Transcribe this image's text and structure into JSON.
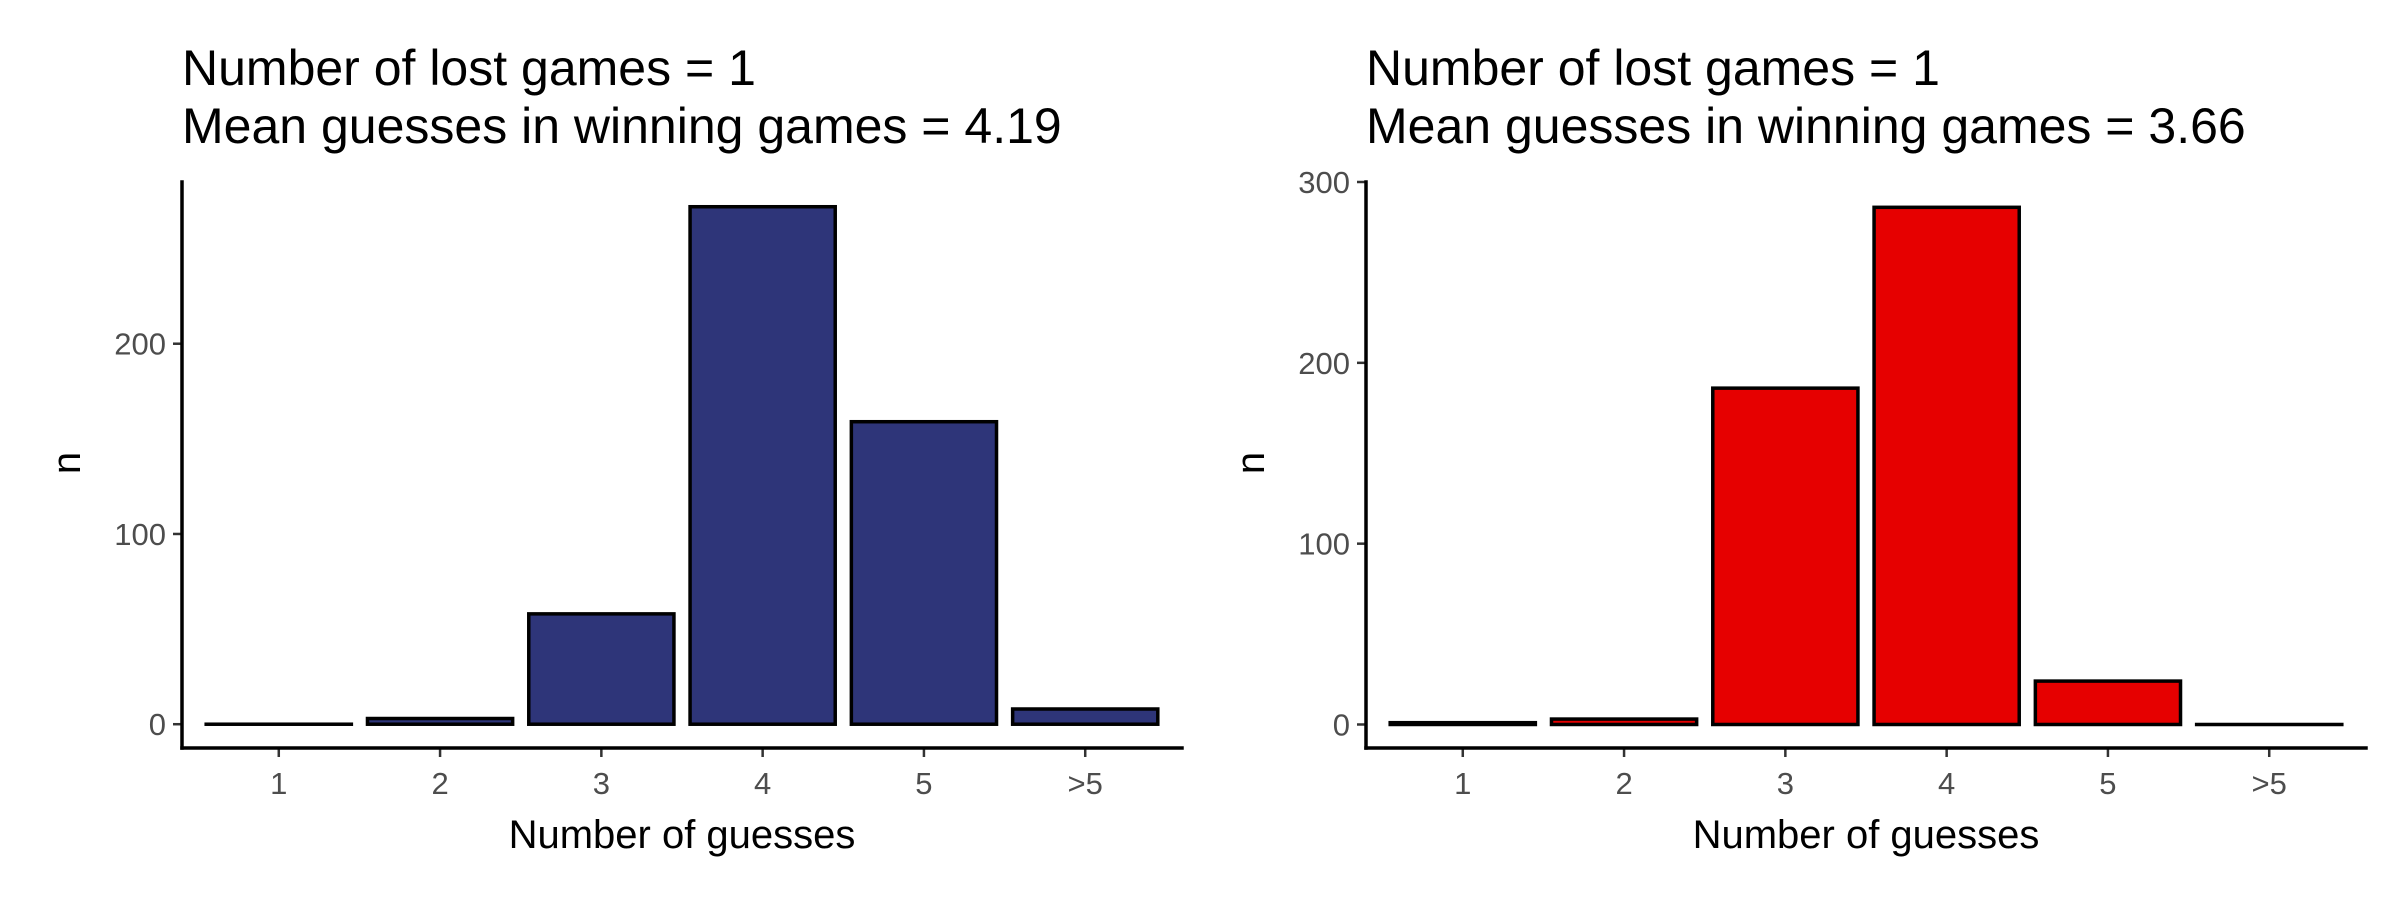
{
  "chart_data": [
    {
      "type": "bar",
      "title_lines": [
        "Number of lost games = 1",
        "Mean guesses in winning games = 4.19"
      ],
      "xlabel": "Number of guesses",
      "ylabel": "n",
      "categories": [
        "1",
        "2",
        "3",
        "4",
        "5",
        ">5"
      ],
      "values": [
        0,
        3,
        58,
        272,
        159,
        8
      ],
      "ylim": [
        -12.5,
        285
      ],
      "yticks": [
        0,
        100,
        200
      ],
      "bar_color": "#2e3579",
      "grid": false,
      "legend": "none"
    },
    {
      "type": "bar",
      "title_lines": [
        "Number of lost games = 1",
        "Mean guesses in winning games = 3.66"
      ],
      "xlabel": "Number of guesses",
      "ylabel": "n",
      "categories": [
        "1",
        "2",
        "3",
        "4",
        "5",
        ">5"
      ],
      "values": [
        1,
        3,
        186,
        286,
        24,
        0
      ],
      "ylim": [
        -13,
        300
      ],
      "yticks": [
        0,
        100,
        200,
        300
      ],
      "bar_color": "#e60000",
      "grid": false,
      "legend": "none"
    }
  ]
}
